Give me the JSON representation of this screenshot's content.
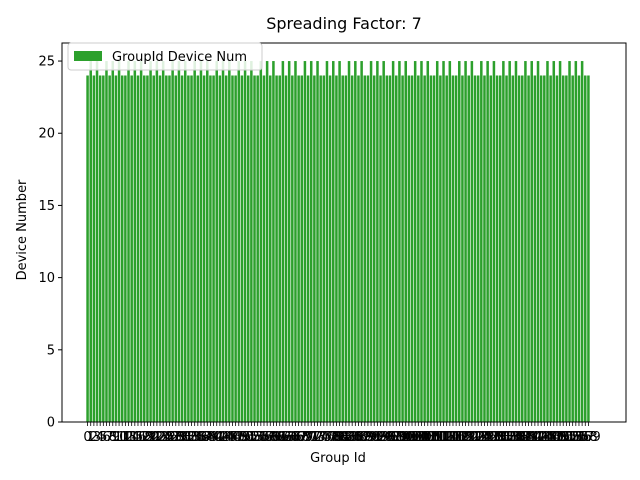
{
  "chart_data": {
    "type": "bar",
    "title": "Spreading Factor: 7",
    "xlabel": "Group Id",
    "ylabel": "Device Number",
    "ylim": [
      0,
      26.25
    ],
    "yticks": [
      0,
      5,
      10,
      15,
      20,
      25
    ],
    "legend": {
      "position": "top-left",
      "label": "GroupId Device Num"
    },
    "bar_color": "#2ca02c",
    "series": [
      {
        "name": "GroupId Device Num",
        "values": [
          24,
          25,
          24,
          25,
          24,
          24,
          25,
          24,
          25,
          24,
          25,
          24,
          24,
          25,
          24,
          25,
          24,
          25,
          24,
          24,
          25,
          24,
          25,
          24,
          25,
          24,
          24,
          25,
          24,
          25,
          24,
          25,
          24,
          24,
          25,
          24,
          25,
          24,
          25,
          24,
          24,
          25,
          24,
          25,
          24,
          25,
          24,
          24,
          25,
          24,
          25,
          24,
          25,
          24,
          24,
          25,
          24,
          25,
          24,
          25,
          24,
          24,
          25,
          24,
          25,
          24,
          25,
          24,
          24,
          25,
          24,
          25,
          24,
          25,
          24,
          24,
          25,
          24,
          25,
          24,
          25,
          24,
          24,
          25,
          24,
          25,
          24,
          25,
          24,
          24,
          25,
          24,
          25,
          24,
          25,
          24,
          24,
          25,
          24,
          25,
          24,
          25,
          24,
          24,
          25,
          24,
          25,
          24,
          25,
          24,
          24,
          25,
          24,
          25,
          24,
          25,
          24,
          24,
          25,
          24,
          25,
          24,
          25,
          24,
          24,
          25,
          24,
          25,
          24,
          25,
          24,
          24,
          25,
          24,
          25,
          24,
          25,
          24,
          24,
          25,
          24,
          25,
          24,
          25,
          24,
          24,
          25,
          24,
          25,
          24,
          25,
          24,
          24,
          25,
          24,
          25,
          24,
          25,
          24,
          24
        ]
      }
    ]
  }
}
